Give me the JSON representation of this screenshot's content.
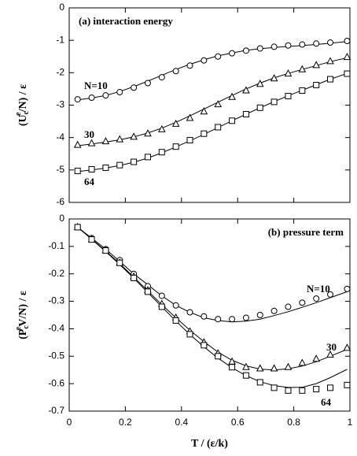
{
  "chart_data": [
    {
      "type": "scatter",
      "title": "(a) interaction energy",
      "ylabel": [
        "(U",
        "c",
        "e",
        "/N) / ε"
      ],
      "x": [
        0.03,
        0.08,
        0.13,
        0.18,
        0.23,
        0.28,
        0.33,
        0.38,
        0.43,
        0.48,
        0.53,
        0.58,
        0.63,
        0.68,
        0.73,
        0.78,
        0.83,
        0.88,
        0.93,
        0.99
      ],
      "xlim": [
        0,
        1
      ],
      "xticks": [
        0,
        0.2,
        0.4,
        0.6,
        0.8,
        1
      ],
      "xtick_labels": false,
      "ylim": [
        -6,
        0
      ],
      "yticks": [
        0,
        -1,
        -2,
        -3,
        -4,
        -5,
        -6
      ],
      "series": [
        {
          "name": "N=10",
          "marker": "circle",
          "color": "#000000",
          "values": [
            -2.82,
            -2.77,
            -2.7,
            -2.6,
            -2.46,
            -2.32,
            -2.14,
            -1.95,
            -1.78,
            -1.62,
            -1.5,
            -1.4,
            -1.32,
            -1.25,
            -1.2,
            -1.16,
            -1.13,
            -1.1,
            -1.07,
            -1.02
          ],
          "fit": [
            -2.84,
            -2.78,
            -2.7,
            -2.58,
            -2.43,
            -2.26,
            -2.08,
            -1.9,
            -1.74,
            -1.6,
            -1.48,
            -1.39,
            -1.31,
            -1.26,
            -1.22,
            -1.19,
            -1.16,
            -1.13,
            -1.09,
            -1.04
          ]
        },
        {
          "name": "30",
          "marker": "triangle",
          "color": "#000000",
          "values": [
            -4.23,
            -4.18,
            -4.12,
            -4.06,
            -3.98,
            -3.88,
            -3.75,
            -3.58,
            -3.4,
            -3.2,
            -2.98,
            -2.75,
            -2.55,
            -2.35,
            -2.18,
            -2.03,
            -1.9,
            -1.77,
            -1.65,
            -1.52
          ],
          "fit": [
            -4.25,
            -4.2,
            -4.14,
            -4.07,
            -3.98,
            -3.86,
            -3.71,
            -3.53,
            -3.33,
            -3.12,
            -2.91,
            -2.7,
            -2.5,
            -2.32,
            -2.16,
            -2.02,
            -1.9,
            -1.78,
            -1.66,
            -1.54
          ]
        },
        {
          "name": "64",
          "marker": "square",
          "color": "#000000",
          "values": [
            -5.03,
            -4.98,
            -4.93,
            -4.85,
            -4.75,
            -4.6,
            -4.45,
            -4.28,
            -4.08,
            -3.88,
            -3.68,
            -3.48,
            -3.28,
            -3.08,
            -2.9,
            -2.72,
            -2.55,
            -2.38,
            -2.2,
            -2.03
          ],
          "fit": [
            -5.05,
            -5.0,
            -4.94,
            -4.86,
            -4.76,
            -4.63,
            -4.47,
            -4.29,
            -4.1,
            -3.9,
            -3.69,
            -3.48,
            -3.28,
            -3.08,
            -2.89,
            -2.71,
            -2.54,
            -2.37,
            -2.2,
            -2.02
          ]
        }
      ]
    },
    {
      "type": "scatter",
      "title": "(b) pressure term",
      "ylabel": [
        "(P",
        "c",
        "e",
        "V/N) / ε"
      ],
      "xlabel": "T / (ε/k)",
      "x": [
        0.03,
        0.08,
        0.13,
        0.18,
        0.23,
        0.28,
        0.33,
        0.38,
        0.43,
        0.48,
        0.53,
        0.58,
        0.63,
        0.68,
        0.73,
        0.78,
        0.83,
        0.88,
        0.93,
        0.99
      ],
      "xlim": [
        0,
        1
      ],
      "xticks": [
        0,
        0.2,
        0.4,
        0.6,
        0.8,
        1
      ],
      "xtick_labels": true,
      "ylim": [
        -0.7,
        0
      ],
      "yticks": [
        0,
        -0.1,
        -0.2,
        -0.3,
        -0.4,
        -0.5,
        -0.6,
        -0.7
      ],
      "series": [
        {
          "name": "N=10",
          "marker": "circle",
          "color": "#000000",
          "values": [
            -0.03,
            -0.07,
            -0.11,
            -0.15,
            -0.2,
            -0.245,
            -0.28,
            -0.315,
            -0.34,
            -0.355,
            -0.365,
            -0.365,
            -0.36,
            -0.35,
            -0.335,
            -0.32,
            -0.305,
            -0.29,
            -0.275,
            -0.255
          ],
          "fit": [
            -0.03,
            -0.07,
            -0.11,
            -0.155,
            -0.2,
            -0.24,
            -0.28,
            -0.315,
            -0.34,
            -0.36,
            -0.37,
            -0.375,
            -0.372,
            -0.365,
            -0.352,
            -0.338,
            -0.322,
            -0.305,
            -0.287,
            -0.265
          ]
        },
        {
          "name": "30",
          "marker": "triangle",
          "color": "#000000",
          "values": [
            -0.03,
            -0.075,
            -0.115,
            -0.16,
            -0.21,
            -0.26,
            -0.31,
            -0.36,
            -0.41,
            -0.45,
            -0.49,
            -0.52,
            -0.54,
            -0.545,
            -0.545,
            -0.54,
            -0.525,
            -0.51,
            -0.495,
            -0.47
          ],
          "fit": [
            -0.03,
            -0.073,
            -0.117,
            -0.163,
            -0.212,
            -0.262,
            -0.312,
            -0.36,
            -0.405,
            -0.447,
            -0.485,
            -0.515,
            -0.535,
            -0.547,
            -0.55,
            -0.546,
            -0.536,
            -0.52,
            -0.5,
            -0.475
          ]
        },
        {
          "name": "64",
          "marker": "square",
          "color": "#000000",
          "values": [
            -0.03,
            -0.075,
            -0.115,
            -0.16,
            -0.215,
            -0.265,
            -0.32,
            -0.37,
            -0.42,
            -0.46,
            -0.5,
            -0.54,
            -0.57,
            -0.595,
            -0.615,
            -0.625,
            -0.625,
            -0.62,
            -0.615,
            -0.605
          ],
          "fit": [
            -0.03,
            -0.074,
            -0.119,
            -0.166,
            -0.216,
            -0.268,
            -0.32,
            -0.372,
            -0.421,
            -0.466,
            -0.507,
            -0.542,
            -0.571,
            -0.593,
            -0.607,
            -0.614,
            -0.613,
            -0.6,
            -0.578,
            -0.548
          ]
        }
      ]
    }
  ]
}
